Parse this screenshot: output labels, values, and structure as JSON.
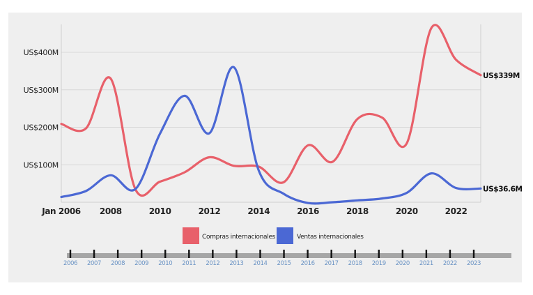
{
  "chart_data": {
    "type": "line",
    "x_axis": {
      "min": 2006,
      "max": 2023,
      "ticks": [
        {
          "value": 2006,
          "label": "Jan 2006"
        },
        {
          "value": 2008,
          "label": "2008"
        },
        {
          "value": 2010,
          "label": "2010"
        },
        {
          "value": 2012,
          "label": "2012"
        },
        {
          "value": 2014,
          "label": "2014"
        },
        {
          "value": 2016,
          "label": "2016"
        },
        {
          "value": 2018,
          "label": "2018"
        },
        {
          "value": 2020,
          "label": "2020"
        },
        {
          "value": 2022,
          "label": "2022"
        }
      ]
    },
    "y_axis": {
      "min": 0,
      "max": 470,
      "ticks": [
        {
          "value": 100,
          "label": "US$100M"
        },
        {
          "value": 200,
          "label": "US$200M"
        },
        {
          "value": 300,
          "label": "US$300M"
        },
        {
          "value": 400,
          "label": "US$400M"
        }
      ],
      "grid": true
    },
    "series": [
      {
        "name": "Compras internacionales",
        "color": "#e8606a",
        "points": [
          [
            2006,
            209
          ],
          [
            2007,
            197
          ],
          [
            2008,
            330
          ],
          [
            2009,
            35
          ],
          [
            2010,
            55
          ],
          [
            2011,
            80
          ],
          [
            2012,
            120
          ],
          [
            2013,
            97
          ],
          [
            2014,
            95
          ],
          [
            2015,
            53
          ],
          [
            2016,
            152
          ],
          [
            2017,
            108
          ],
          [
            2018,
            222
          ],
          [
            2019,
            226
          ],
          [
            2020,
            157
          ],
          [
            2021,
            465
          ],
          [
            2022,
            380
          ],
          [
            2023,
            339
          ]
        ],
        "end_label": "US$339M"
      },
      {
        "name": "Ventas internacionales",
        "color": "#4b68d4",
        "points": [
          [
            2006,
            14
          ],
          [
            2007,
            30
          ],
          [
            2008,
            72
          ],
          [
            2009,
            35
          ],
          [
            2010,
            183
          ],
          [
            2011,
            284
          ],
          [
            2012,
            184
          ],
          [
            2013,
            360
          ],
          [
            2014,
            85
          ],
          [
            2015,
            23
          ],
          [
            2016,
            -2
          ],
          [
            2017,
            0
          ],
          [
            2018,
            5
          ],
          [
            2019,
            10
          ],
          [
            2020,
            25
          ],
          [
            2021,
            77
          ],
          [
            2022,
            38
          ],
          [
            2023,
            36.6
          ]
        ],
        "end_label": "US$36.6M"
      }
    ],
    "legend": {
      "placement": "bottom-center",
      "items": [
        "Compras internacionales",
        "Ventas internacionales"
      ]
    },
    "timeline": {
      "years": [
        "2006",
        "2007",
        "2008",
        "2009",
        "2010",
        "2011",
        "2012",
        "2013",
        "2014",
        "2015",
        "2016",
        "2017",
        "2018",
        "2019",
        "2020",
        "2021",
        "2022",
        "2023"
      ]
    }
  },
  "colors": {
    "background": "#efefef",
    "grid": "#d8d8d8",
    "timeline_bar": "#a6a6a6",
    "timeline_tick": "#111111",
    "timeline_label": "#6a93c4"
  }
}
